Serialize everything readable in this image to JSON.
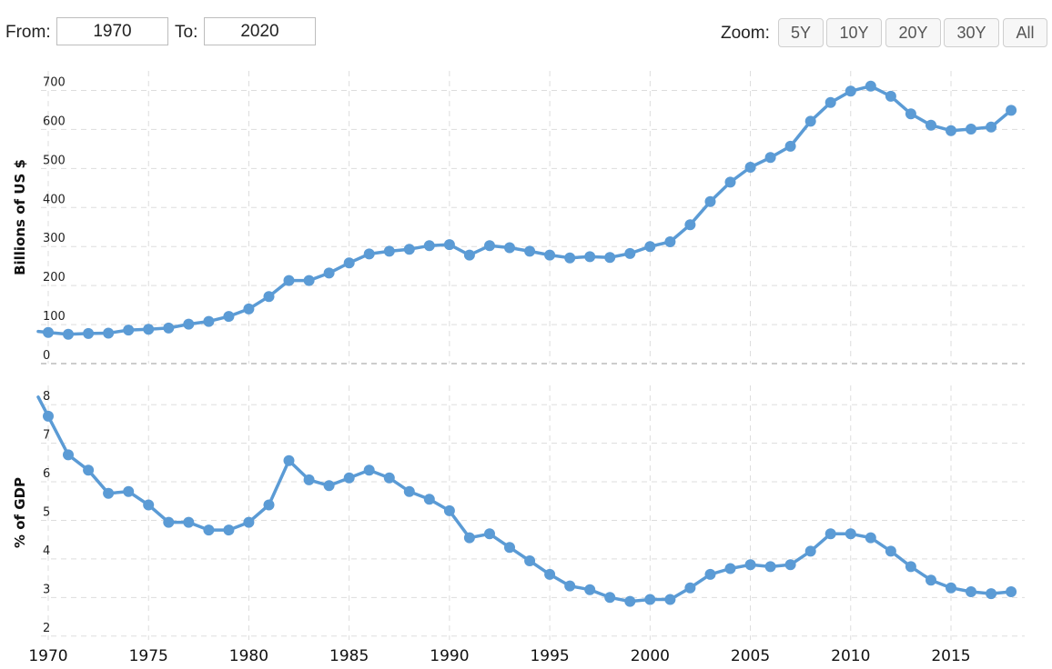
{
  "controls": {
    "from_label": "From:",
    "from_value": "1970",
    "to_label": "To:",
    "to_value": "2020",
    "zoom_label": "Zoom:",
    "zoom_buttons": [
      "5Y",
      "10Y",
      "20Y",
      "30Y",
      "All"
    ]
  },
  "colors": {
    "series": "#5b9bd5",
    "grid": "#dddddd",
    "zero_line": "#999999"
  },
  "chart_data": [
    {
      "type": "line",
      "ylabel": "Billions of US $",
      "ylim": [
        0,
        750
      ],
      "yticks": [
        0,
        100,
        200,
        300,
        400,
        500,
        600,
        700
      ],
      "x": [
        1970,
        1971,
        1972,
        1973,
        1974,
        1975,
        1976,
        1977,
        1978,
        1979,
        1980,
        1981,
        1982,
        1983,
        1984,
        1985,
        1986,
        1987,
        1988,
        1989,
        1990,
        1991,
        1992,
        1993,
        1994,
        1995,
        1996,
        1997,
        1998,
        1999,
        2000,
        2001,
        2002,
        2003,
        2004,
        2005,
        2006,
        2007,
        2008,
        2009,
        2010,
        2011,
        2012,
        2013,
        2014,
        2015,
        2016,
        2017,
        2018
      ],
      "values": [
        80,
        75,
        77,
        78,
        86,
        88,
        91,
        101,
        108,
        121,
        140,
        172,
        213,
        213,
        232,
        258,
        281,
        288,
        293,
        302,
        305,
        278,
        302,
        297,
        288,
        278,
        271,
        274,
        272,
        282,
        300,
        312,
        356,
        415,
        465,
        503,
        528,
        557,
        621,
        669,
        698,
        711,
        685,
        640,
        611,
        597,
        601,
        606,
        649
      ],
      "grid": true
    },
    {
      "type": "line",
      "ylabel": "% of GDP",
      "ylim": [
        1.9,
        8.5
      ],
      "yticks": [
        2,
        3,
        4,
        5,
        6,
        7,
        8
      ],
      "x": [
        1970,
        1971,
        1972,
        1973,
        1974,
        1975,
        1976,
        1977,
        1978,
        1979,
        1980,
        1981,
        1982,
        1983,
        1984,
        1985,
        1986,
        1987,
        1988,
        1989,
        1990,
        1991,
        1992,
        1993,
        1994,
        1995,
        1996,
        1997,
        1998,
        1999,
        2000,
        2001,
        2002,
        2003,
        2004,
        2005,
        2006,
        2007,
        2008,
        2009,
        2010,
        2011,
        2012,
        2013,
        2014,
        2015,
        2016,
        2017,
        2018
      ],
      "values": [
        7.7,
        6.7,
        6.3,
        5.7,
        5.75,
        5.4,
        4.95,
        4.95,
        4.75,
        4.75,
        4.95,
        5.4,
        6.55,
        6.05,
        5.9,
        6.1,
        6.3,
        6.1,
        5.75,
        5.55,
        5.25,
        4.55,
        4.65,
        4.3,
        3.95,
        3.6,
        3.3,
        3.2,
        3.0,
        2.9,
        2.95,
        2.95,
        3.25,
        3.6,
        3.75,
        3.85,
        3.8,
        3.85,
        4.2,
        4.65,
        4.65,
        4.55,
        4.2,
        3.8,
        3.45,
        3.25,
        3.15,
        3.1,
        3.15
      ],
      "grid": true
    }
  ],
  "x_axis": {
    "xlim": [
      1970,
      2020
    ],
    "ticks": [
      1970,
      1975,
      1980,
      1985,
      1990,
      1995,
      2000,
      2005,
      2010,
      2015
    ]
  }
}
